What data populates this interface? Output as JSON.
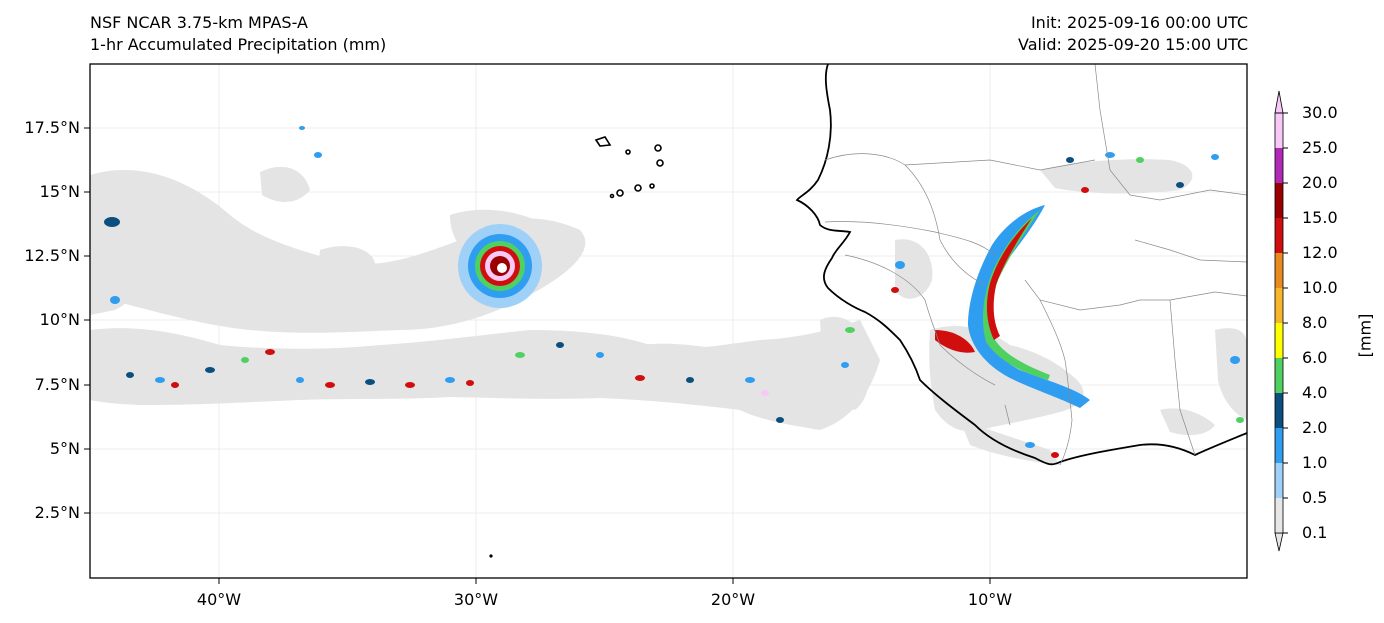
{
  "header": {
    "model_title": "NSF NCAR 3.75-km MPAS-A",
    "field_title": "1-hr Accumulated Precipitation (mm)",
    "init_time": "Init: 2025-09-16 00:00 UTC",
    "valid_time": "Valid: 2025-09-20 15:00 UTC"
  },
  "map": {
    "lat_ticks": [
      "17.5°N",
      "15°N",
      "12.5°N",
      "10°N",
      "7.5°N",
      "5°N",
      "2.5°N"
    ],
    "lon_ticks": [
      "40°W",
      "30°W",
      "20°W",
      "10°W"
    ],
    "coastline_color": "#000000",
    "border_color": "#888888",
    "gridline_color": "#e6e6e6"
  },
  "colorbar": {
    "title": "[mm]",
    "levels": [
      "0.1",
      "0.5",
      "1.0",
      "2.0",
      "4.0",
      "6.0",
      "8.0",
      "10.0",
      "12.0",
      "15.0",
      "20.0",
      "25.0",
      "30.0"
    ],
    "colors": [
      "#e6e6e6",
      "#9fd0f7",
      "#2f9df0",
      "#0b4f7e",
      "#4fd162",
      "#ffff00",
      "#f7b52d",
      "#e88a1e",
      "#d10e0e",
      "#9a0000",
      "#b02ab7",
      "#f8c8f6"
    ]
  }
}
